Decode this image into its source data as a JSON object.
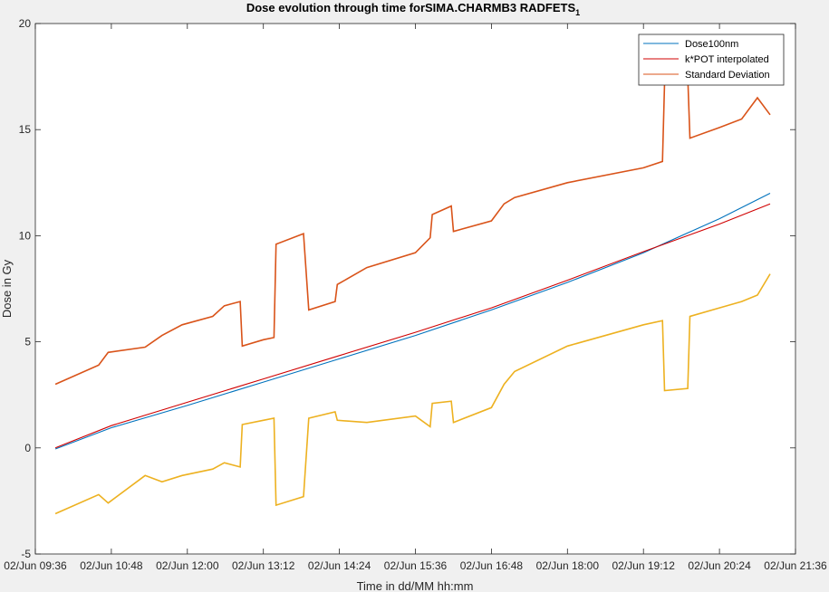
{
  "chart_data": {
    "type": "line",
    "title": "Dose evolution through time forSIMA.CHARMB3 RADFETS",
    "title_subscript": "1",
    "xlabel": "Time in dd/MM hh:mm",
    "ylabel": "Dose in Gy",
    "ylim": [
      -5,
      20
    ],
    "yticks": [
      -5,
      0,
      5,
      10,
      15,
      20
    ],
    "xlim": [
      "02/Jun 09:36",
      "02/Jun 21:36"
    ],
    "xticks": [
      "02/Jun 09:36",
      "02/Jun 10:48",
      "02/Jun 12:00",
      "02/Jun 13:12",
      "02/Jun 14:24",
      "02/Jun 15:36",
      "02/Jun 16:48",
      "02/Jun 18:00",
      "02/Jun 19:12",
      "02/Jun 20:24",
      "02/Jun 21:36"
    ],
    "grid": false,
    "legend_position": "top-right",
    "series": [
      {
        "name": "Dose100nm",
        "color": "#0072BD",
        "x": [
          "02/Jun 09:55",
          "02/Jun 10:48",
          "02/Jun 12:00",
          "02/Jun 13:12",
          "02/Jun 14:24",
          "02/Jun 15:36",
          "02/Jun 16:48",
          "02/Jun 18:00",
          "02/Jun 19:12",
          "02/Jun 20:24",
          "02/Jun 21:12"
        ],
        "y": [
          -0.05,
          0.95,
          2.0,
          3.1,
          4.2,
          5.3,
          6.5,
          7.8,
          9.2,
          10.8,
          12.0
        ]
      },
      {
        "name": "k*POT interpolated",
        "color": "#D00000",
        "x": [
          "02/Jun 09:55",
          "02/Jun 10:48",
          "02/Jun 12:00",
          "02/Jun 13:12",
          "02/Jun 14:24",
          "02/Jun 15:36",
          "02/Jun 16:48",
          "02/Jun 18:00",
          "02/Jun 19:12",
          "02/Jun 20:24",
          "02/Jun 21:12"
        ],
        "y": [
          0.0,
          1.05,
          2.15,
          3.25,
          4.35,
          5.45,
          6.6,
          7.9,
          9.25,
          10.55,
          11.5
        ]
      },
      {
        "name": "Standard Deviation",
        "color": "#D95319",
        "x": [
          "02/Jun 09:55",
          "02/Jun 10:36",
          "02/Jun 10:45",
          "02/Jun 11:20",
          "02/Jun 11:36",
          "02/Jun 11:55",
          "02/Jun 12:24",
          "02/Jun 12:35",
          "02/Jun 12:50",
          "02/Jun 12:52",
          "02/Jun 13:12",
          "02/Jun 13:22",
          "02/Jun 13:24",
          "02/Jun 13:50",
          "02/Jun 13:55",
          "02/Jun 14:20",
          "02/Jun 14:22",
          "02/Jun 14:50",
          "02/Jun 15:36",
          "02/Jun 15:50",
          "02/Jun 15:52",
          "02/Jun 16:10",
          "02/Jun 16:12",
          "02/Jun 16:48",
          "02/Jun 17:00",
          "02/Jun 17:10",
          "02/Jun 18:00",
          "02/Jun 19:12",
          "02/Jun 19:30",
          "02/Jun 19:32",
          "02/Jun 19:54",
          "02/Jun 19:56",
          "02/Jun 20:24",
          "02/Jun 20:45",
          "02/Jun 21:00",
          "02/Jun 21:12"
        ],
        "y": [
          3.0,
          3.9,
          4.5,
          4.75,
          5.3,
          5.8,
          6.2,
          6.7,
          6.9,
          4.8,
          5.1,
          5.2,
          9.6,
          10.1,
          6.5,
          6.9,
          7.7,
          8.5,
          9.2,
          9.9,
          11.0,
          11.4,
          10.2,
          10.7,
          11.5,
          11.8,
          12.5,
          13.2,
          13.5,
          17.2,
          17.5,
          14.6,
          15.1,
          15.5,
          16.5,
          15.7
        ]
      },
      {
        "name": "",
        "color": "#EDB120",
        "x": [
          "02/Jun 09:55",
          "02/Jun 10:36",
          "02/Jun 10:45",
          "02/Jun 11:20",
          "02/Jun 11:36",
          "02/Jun 11:55",
          "02/Jun 12:24",
          "02/Jun 12:35",
          "02/Jun 12:50",
          "02/Jun 12:52",
          "02/Jun 13:12",
          "02/Jun 13:22",
          "02/Jun 13:24",
          "02/Jun 13:50",
          "02/Jun 13:55",
          "02/Jun 14:20",
          "02/Jun 14:22",
          "02/Jun 14:50",
          "02/Jun 15:36",
          "02/Jun 15:50",
          "02/Jun 15:52",
          "02/Jun 16:10",
          "02/Jun 16:12",
          "02/Jun 16:48",
          "02/Jun 17:00",
          "02/Jun 17:10",
          "02/Jun 18:00",
          "02/Jun 19:12",
          "02/Jun 19:30",
          "02/Jun 19:32",
          "02/Jun 19:54",
          "02/Jun 19:56",
          "02/Jun 20:24",
          "02/Jun 20:45",
          "02/Jun 21:00",
          "02/Jun 21:12"
        ],
        "y": [
          -3.1,
          -2.2,
          -2.6,
          -1.3,
          -1.6,
          -1.3,
          -1.0,
          -0.7,
          -0.9,
          1.1,
          1.3,
          1.4,
          -2.7,
          -2.3,
          1.4,
          1.7,
          1.3,
          1.2,
          1.5,
          1.0,
          2.1,
          2.2,
          1.2,
          1.9,
          3.0,
          3.6,
          4.8,
          5.8,
          6.0,
          2.7,
          2.8,
          6.2,
          6.6,
          6.9,
          7.2,
          8.2
        ]
      }
    ]
  }
}
